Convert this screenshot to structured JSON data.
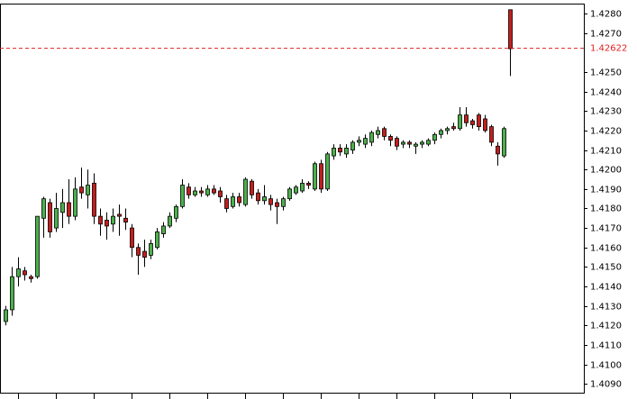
{
  "chart_data": {
    "type": "candlestick",
    "open": [
      1.4122,
      1.4128,
      1.4145,
      1.4148,
      1.4145,
      1.4145,
      1.4175,
      1.4183,
      1.417,
      1.4178,
      1.4183,
      1.4176,
      1.4191,
      1.4187,
      1.4193,
      1.4176,
      1.4174,
      1.4172,
      1.4177,
      1.4175,
      1.417,
      1.416,
      1.4158,
      1.4156,
      1.416,
      1.4167,
      1.4171,
      1.4175,
      1.4181,
      1.4191,
      1.4187,
      1.4189,
      1.4187,
      1.419,
      1.4189,
      1.4185,
      1.4181,
      1.4186,
      1.4182,
      1.4194,
      1.4188,
      1.4184,
      1.4185,
      1.4183,
      1.4181,
      1.4185,
      1.4188,
      1.4189,
      1.4193,
      1.419,
      1.4203,
      1.419,
      1.4207,
      1.4211,
      1.4208,
      1.421,
      1.4214,
      1.4213,
      1.4214,
      1.4218,
      1.4221,
      1.4217,
      1.4216,
      1.4213,
      1.4214,
      1.4212,
      1.4213,
      1.4213,
      1.4215,
      1.4218,
      1.422,
      1.4222,
      1.4221,
      1.4228,
      1.4225,
      1.4228,
      1.4226,
      1.4222,
      1.4212,
      1.4207,
      1.4282
    ],
    "high": [
      1.413,
      1.415,
      1.4155,
      1.415,
      1.4146,
      1.4176,
      1.4186,
      1.4185,
      1.4188,
      1.419,
      1.4195,
      1.4196,
      1.4201,
      1.42,
      1.4198,
      1.418,
      1.4178,
      1.418,
      1.4182,
      1.418,
      1.4172,
      1.4162,
      1.4164,
      1.4164,
      1.417,
      1.4173,
      1.4178,
      1.4182,
      1.4195,
      1.4193,
      1.4191,
      1.4191,
      1.4192,
      1.4192,
      1.4191,
      1.4187,
      1.4188,
      1.4188,
      1.4196,
      1.4195,
      1.419,
      1.4192,
      1.4187,
      1.4185,
      1.4186,
      1.4191,
      1.4192,
      1.4195,
      1.4194,
      1.4204,
      1.4205,
      1.4209,
      1.4213,
      1.4213,
      1.4213,
      1.4215,
      1.4217,
      1.4218,
      1.422,
      1.4222,
      1.4222,
      1.4218,
      1.4217,
      1.4215,
      1.4215,
      1.4214,
      1.4215,
      1.4216,
      1.4219,
      1.4221,
      1.4222,
      1.4224,
      1.4232,
      1.4232,
      1.4226,
      1.4229,
      1.4228,
      1.4223,
      1.4214,
      1.4222,
      1.4282
    ],
    "low": [
      1.412,
      1.4125,
      1.414,
      1.4143,
      1.4142,
      1.4144,
      1.4165,
      1.4165,
      1.4168,
      1.417,
      1.4172,
      1.4174,
      1.4185,
      1.418,
      1.4172,
      1.4166,
      1.4164,
      1.4168,
      1.4166,
      1.4169,
      1.4155,
      1.4146,
      1.415,
      1.4154,
      1.4159,
      1.4165,
      1.417,
      1.4173,
      1.418,
      1.4185,
      1.4186,
      1.4186,
      1.4186,
      1.4187,
      1.4183,
      1.4178,
      1.418,
      1.4181,
      1.4181,
      1.4185,
      1.4182,
      1.4182,
      1.4179,
      1.4172,
      1.4179,
      1.4184,
      1.4187,
      1.4188,
      1.419,
      1.4189,
      1.4188,
      1.4189,
      1.4205,
      1.4207,
      1.4206,
      1.4208,
      1.4212,
      1.4211,
      1.4212,
      1.4216,
      1.4215,
      1.4212,
      1.421,
      1.4211,
      1.4211,
      1.4208,
      1.4211,
      1.4212,
      1.4213,
      1.4216,
      1.4218,
      1.422,
      1.422,
      1.4222,
      1.4221,
      1.422,
      1.4219,
      1.4212,
      1.4202,
      1.4206,
      1.4248
    ],
    "close": [
      1.4128,
      1.4145,
      1.4149,
      1.4146,
      1.4144,
      1.4176,
      1.4185,
      1.4168,
      1.418,
      1.4183,
      1.4176,
      1.419,
      1.4188,
      1.4192,
      1.4176,
      1.4172,
      1.4171,
      1.4176,
      1.4176,
      1.4173,
      1.416,
      1.4156,
      1.4155,
      1.4162,
      1.4168,
      1.4171,
      1.4176,
      1.4181,
      1.4192,
      1.4187,
      1.4189,
      1.4188,
      1.419,
      1.4188,
      1.4186,
      1.418,
      1.4186,
      1.4183,
      1.4195,
      1.4187,
      1.4184,
      1.4186,
      1.4182,
      1.4181,
      1.4185,
      1.419,
      1.4191,
      1.4193,
      1.4192,
      1.4203,
      1.419,
      1.4208,
      1.4211,
      1.4209,
      1.4211,
      1.4214,
      1.4215,
      1.4216,
      1.4219,
      1.422,
      1.4217,
      1.4215,
      1.4212,
      1.4214,
      1.4213,
      1.4213,
      1.4214,
      1.4215,
      1.4218,
      1.422,
      1.4221,
      1.4221,
      1.4228,
      1.4224,
      1.4223,
      1.4222,
      1.422,
      1.4214,
      1.4208,
      1.4221,
      1.4262
    ],
    "up_color": "#4cb04c",
    "down_color": "#c41e1e",
    "current_price": 1.42622,
    "current_price_color": "#e02020",
    "ylim": [
      1.4085,
      1.4287
    ],
    "yticks": [
      {
        "value": 1.428,
        "label": "1.4280"
      },
      {
        "value": 1.427,
        "label": "1.4270"
      },
      {
        "value": 1.425,
        "label": "1.4250"
      },
      {
        "value": 1.424,
        "label": "1.4240"
      },
      {
        "value": 1.423,
        "label": "1.4230"
      },
      {
        "value": 1.422,
        "label": "1.4220"
      },
      {
        "value": 1.421,
        "label": "1.4210"
      },
      {
        "value": 1.42,
        "label": "1.4200"
      },
      {
        "value": 1.419,
        "label": "1.4190"
      },
      {
        "value": 1.418,
        "label": "1.4180"
      },
      {
        "value": 1.417,
        "label": "1.4170"
      },
      {
        "value": 1.416,
        "label": "1.4160"
      },
      {
        "value": 1.415,
        "label": "1.4150"
      },
      {
        "value": 1.414,
        "label": "1.4140"
      },
      {
        "value": 1.413,
        "label": "1.4130"
      },
      {
        "value": 1.412,
        "label": "1.4120"
      },
      {
        "value": 1.411,
        "label": "1.4110"
      },
      {
        "value": 1.41,
        "label": "1.4100"
      },
      {
        "value": 1.409,
        "label": "1.4090"
      }
    ]
  }
}
